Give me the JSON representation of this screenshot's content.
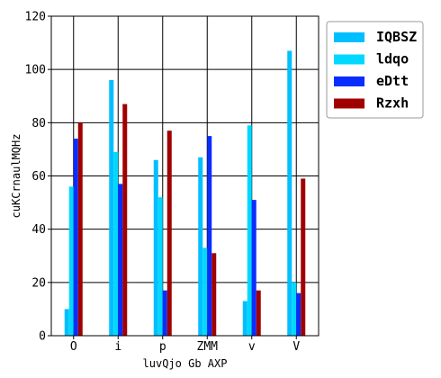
{
  "chart_data": {
    "type": "bar",
    "title": "",
    "xlabel": "luvQjo Gb AXP",
    "ylabel": "cuKCrnaulMQHz",
    "ylim": [
      0,
      120
    ],
    "yticks": [
      0,
      20,
      40,
      60,
      80,
      100,
      120
    ],
    "grid": true,
    "legend_position": "right",
    "categories": [
      "O",
      "i",
      "p",
      "ZMM",
      "v",
      "V"
    ],
    "series": [
      {
        "name": "IQBSZ",
        "color": "#00bfff",
        "values": [
          10,
          96,
          66,
          67,
          13,
          107
        ]
      },
      {
        "name": "ldqo",
        "color": "#00d8ff",
        "values": [
          56,
          69,
          52,
          33,
          79,
          20
        ]
      },
      {
        "name": "eDtt",
        "color": "#0a2dff",
        "values": [
          74,
          57,
          17,
          75,
          51,
          16
        ]
      },
      {
        "name": "Rzxh",
        "color": "#a00000",
        "values": [
          80,
          87,
          77,
          31,
          17,
          59
        ]
      }
    ]
  }
}
